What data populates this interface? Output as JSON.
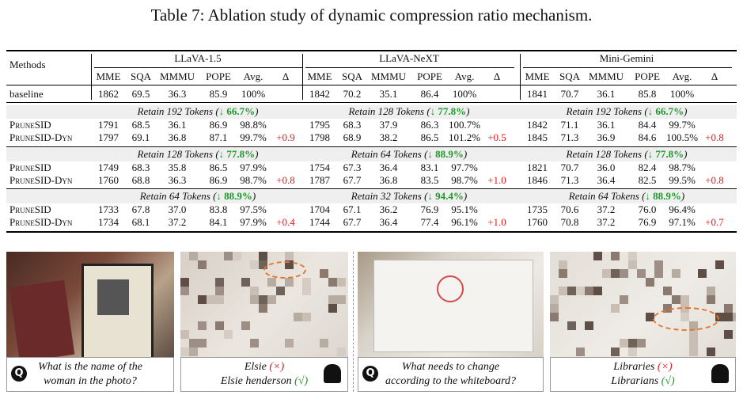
{
  "title": "Table 7: Ablation study of dynamic compression ratio mechanism.",
  "table": {
    "methods_header": "Methods",
    "groups": [
      "LLaVA-1.5",
      "LLaVA-NeXT",
      "Mini-Gemini"
    ],
    "columns": [
      "MME",
      "SQA",
      "MMMU",
      "POPE",
      "Avg.",
      "Δ"
    ],
    "baseline": {
      "method": "baseline",
      "groups": [
        [
          "1862",
          "69.5",
          "36.3",
          "85.9",
          "100%"
        ],
        [
          "1842",
          "70.2",
          "35.1",
          "86.4",
          "100%"
        ],
        [
          "1841",
          "70.7",
          "36.1",
          "85.8",
          "100%"
        ]
      ]
    },
    "sections": [
      {
        "labels": [
          {
            "lead": "Retain 192 Tokens (",
            "cut": "↓ 66.7%",
            "close": ")"
          },
          {
            "lead": "Retain 128 Tokens (",
            "cut": "↓ 77.8%",
            "close": ")"
          },
          {
            "lead": "Retain 192 Tokens (",
            "cut": "↓ 66.7%",
            "close": ")"
          }
        ],
        "rows": [
          {
            "method": "PruneSID",
            "groups": [
              [
                "1791",
                "68.5",
                "36.1",
                "86.9",
                "98.8%"
              ],
              [
                "1795",
                "68.3",
                "37.9",
                "86.3",
                "100.7%"
              ],
              [
                "1842",
                "71.1",
                "36.1",
                "84.4",
                "99.7%"
              ]
            ]
          },
          {
            "method": "PruneSID-Dyn",
            "groups": [
              [
                "1797",
                "69.1",
                "36.8",
                "87.1",
                "99.7%",
                "+0.9"
              ],
              [
                "1798",
                "68.9",
                "38.2",
                "86.5",
                "101.2%",
                "+0.5"
              ],
              [
                "1845",
                "71.3",
                "36.9",
                "84.6",
                "100.5%",
                "+0.8"
              ]
            ]
          }
        ]
      },
      {
        "labels": [
          {
            "lead": "Retain 128 Tokens (",
            "cut": "↓ 77.8%",
            "close": ")"
          },
          {
            "lead": "Retain 64 Tokens (",
            "cut": "↓ 88.9%",
            "close": ")"
          },
          {
            "lead": "Retain 128 Tokens (",
            "cut": "↓ 77.8%",
            "close": ")"
          }
        ],
        "rows": [
          {
            "method": "PruneSID",
            "groups": [
              [
                "1749",
                "68.3",
                "35.8",
                "86.5",
                "97.9%"
              ],
              [
                "1754",
                "67.3",
                "36.4",
                "83.1",
                "97.7%"
              ],
              [
                "1821",
                "70.7",
                "36.0",
                "82.4",
                "98.7%"
              ]
            ]
          },
          {
            "method": "PruneSID-Dyn",
            "groups": [
              [
                "1760",
                "68.8",
                "36.3",
                "86.9",
                "98.7%",
                "+0.8"
              ],
              [
                "1787",
                "67.7",
                "36.8",
                "83.5",
                "98.7%",
                "+1.0"
              ],
              [
                "1846",
                "71.3",
                "36.4",
                "82.5",
                "99.5%",
                "+0.8"
              ]
            ]
          }
        ]
      },
      {
        "labels": [
          {
            "lead": "Retain 64 Tokens (",
            "cut": "↓ 88.9%",
            "close": ")"
          },
          {
            "lead": "Retain 32 Tokens (",
            "cut": "↓ 94.4%",
            "close": ")"
          },
          {
            "lead": "Retain 64 Tokens (",
            "cut": "↓ 88.9%",
            "close": ")"
          }
        ],
        "rows": [
          {
            "method": "PruneSID",
            "groups": [
              [
                "1733",
                "67.8",
                "37.0",
                "83.8",
                "97.5%"
              ],
              [
                "1704",
                "67.1",
                "36.2",
                "76.9",
                "95.1%"
              ],
              [
                "1735",
                "70.6",
                "37.2",
                "76.0",
                "96.4%"
              ]
            ]
          },
          {
            "method": "PruneSID-Dyn",
            "groups": [
              [
                "1734",
                "68.1",
                "37.2",
                "84.1",
                "97.9%",
                "+0.4"
              ],
              [
                "1744",
                "67.7",
                "36.4",
                "77.4",
                "96.1%",
                "+1.0"
              ],
              [
                "1760",
                "70.8",
                "37.2",
                "76.9",
                "97.1%",
                "+0.7"
              ]
            ]
          }
        ]
      }
    ]
  },
  "examples": [
    {
      "question": [
        "What is the name of the",
        "woman in the photo?"
      ],
      "answers": [
        {
          "text": "Elsie",
          "mark": "(×)"
        },
        {
          "text": "Elsie henderson",
          "mark": "(√)"
        }
      ]
    },
    {
      "question": [
        "What needs to change",
        "according to the whiteboard?"
      ],
      "answers": [
        {
          "text": "Libraries",
          "mark": "(×)"
        },
        {
          "text": "Librarians",
          "mark": "(√)"
        }
      ]
    }
  ]
}
